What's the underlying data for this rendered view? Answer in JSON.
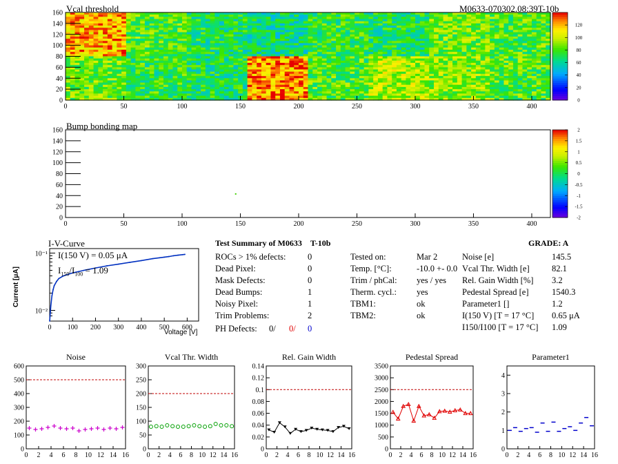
{
  "maps": {
    "vcal": {
      "title": "Vcal threshold",
      "id_label": "M0633-070302.08:39T-10b",
      "x_ticks": [
        0,
        50,
        100,
        150,
        200,
        250,
        300,
        350,
        400
      ],
      "y_ticks": [
        0,
        20,
        40,
        60,
        80,
        100,
        120,
        140,
        160
      ],
      "xlim": [
        0,
        416
      ],
      "ylim": [
        0,
        160
      ],
      "colorbar_ticks": [
        0,
        20,
        40,
        60,
        80,
        100,
        120
      ],
      "colorbar_range": [
        0,
        140
      ],
      "rocs_top": [
        120,
        80,
        70,
        65,
        75,
        70,
        85,
        80
      ],
      "rocs_bottom": [
        85,
        75,
        70,
        125,
        80,
        95,
        90,
        80
      ]
    },
    "bump": {
      "title": "Bump bonding map",
      "x_ticks": [
        0,
        50,
        100,
        150,
        200,
        250,
        300,
        350,
        400
      ],
      "y_ticks": [
        0,
        20,
        40,
        60,
        80,
        100,
        120,
        140,
        160
      ],
      "xlim": [
        0,
        416
      ],
      "ylim": [
        0,
        160
      ],
      "colorbar_ticks": [
        -2,
        -1.5,
        -1,
        -0.5,
        0,
        0.5,
        1,
        1.5,
        2
      ],
      "colorbar_range": [
        -2,
        2
      ],
      "dead_pixels": [
        {
          "x": 146,
          "y": 43
        }
      ]
    }
  },
  "iv": {
    "title": "I-V-Curve",
    "xlabel": "Voltage [V]",
    "ylabel": "Current [μA]",
    "annotation1": "I(150 V) = 0.05 μA",
    "annotation2": "I150/I100 = 1.09",
    "annotation2_parts": {
      "a": "I",
      "b": "150",
      "c": "/I",
      "d": "100",
      "e": " = 1.09"
    },
    "x_ticks": [
      0,
      100,
      200,
      300,
      400,
      500,
      600
    ],
    "y_tick_labels": [
      "10⁻¹",
      "10⁻²"
    ],
    "xlim": [
      0,
      650
    ],
    "ylim_log": [
      0.0065,
      0.12
    ],
    "points": [
      [
        0,
        0.0065
      ],
      [
        5,
        0.012
      ],
      [
        10,
        0.018
      ],
      [
        15,
        0.023
      ],
      [
        20,
        0.027
      ],
      [
        30,
        0.032
      ],
      [
        40,
        0.036
      ],
      [
        60,
        0.04
      ],
      [
        100,
        0.045
      ],
      [
        150,
        0.05
      ],
      [
        200,
        0.055
      ],
      [
        250,
        0.06
      ],
      [
        300,
        0.064
      ],
      [
        350,
        0.069
      ],
      [
        400,
        0.074
      ],
      [
        450,
        0.08
      ],
      [
        480,
        0.083
      ],
      [
        500,
        0.085
      ],
      [
        520,
        0.087
      ],
      [
        540,
        0.09
      ],
      [
        560,
        0.092
      ],
      [
        580,
        0.094
      ],
      [
        590,
        0.095
      ]
    ]
  },
  "summary": {
    "title": "Test Summary of M0633",
    "type": "T-10b",
    "grade": "GRADE:  A",
    "left": [
      {
        "label": "ROCs > 1% defects:",
        "value": "0"
      },
      {
        "label": "Dead Pixel:",
        "value": "0"
      },
      {
        "label": "Mask Defects:",
        "value": "0"
      },
      {
        "label": "Dead Bumps:",
        "value": "1"
      },
      {
        "label": "Noisy Pixel:",
        "value": "1"
      },
      {
        "label": "Trim Problems:",
        "value": "2"
      }
    ],
    "ph_label": "PH Defects:",
    "ph_values": [
      "0/",
      "0/",
      "0"
    ],
    "ph_colors": [
      "#000000",
      "#e00000",
      "#0000cc"
    ],
    "middle": [
      {
        "label": "Tested on:",
        "value": "Mar 2"
      },
      {
        "label": "Temp. [°C]:",
        "value": "-10.0 +- 0.0"
      },
      {
        "label": "Trim / phCal:",
        "value": "yes / yes"
      },
      {
        "label": "Therm. cycl.:",
        "value": "yes"
      },
      {
        "label": "TBM1:",
        "value": "ok"
      },
      {
        "label": "TBM2:",
        "value": "ok"
      }
    ],
    "right": [
      {
        "label": "Noise [e]",
        "value": "145.5"
      },
      {
        "label": "Vcal Thr. Width [e]",
        "value": "82.1"
      },
      {
        "label": "Rel. Gain Width [%]",
        "value": "3.2"
      },
      {
        "label": "Pedestal Spread [e]",
        "value": "1540.3"
      },
      {
        "label": "Parameter1 []",
        "value": "1.2"
      },
      {
        "label": "I(150 V) [T = 17 °C]",
        "value": "0.65 μA"
      },
      {
        "label": "I150/I100  [T = 17 °C]",
        "value": "1.09"
      }
    ]
  },
  "chart_data": [
    {
      "type": "scatter",
      "title": "Noise",
      "xlim": [
        0,
        16
      ],
      "ylim": [
        0,
        600
      ],
      "y_ticks": [
        0,
        100,
        200,
        300,
        400,
        500,
        600
      ],
      "x_ticks": [
        0,
        2,
        4,
        6,
        8,
        10,
        12,
        14,
        16
      ],
      "threshold": 500,
      "color": "#cc00cc",
      "marker": "plus",
      "x": [
        0,
        1,
        2,
        3,
        4,
        5,
        6,
        7,
        8,
        9,
        10,
        11,
        12,
        13,
        14,
        15
      ],
      "values": [
        150,
        140,
        145,
        155,
        165,
        150,
        145,
        150,
        130,
        140,
        145,
        150,
        140,
        150,
        145,
        155
      ]
    },
    {
      "type": "scatter",
      "title": "Vcal Thr. Width",
      "xlim": [
        0,
        16
      ],
      "ylim": [
        0,
        300
      ],
      "y_ticks": [
        0,
        50,
        100,
        150,
        200,
        250,
        300
      ],
      "x_ticks": [
        0,
        2,
        4,
        6,
        8,
        10,
        12,
        14,
        16
      ],
      "threshold": 200,
      "color": "#00a000",
      "marker": "circle",
      "x": [
        0,
        1,
        2,
        3,
        4,
        5,
        6,
        7,
        8,
        9,
        10,
        11,
        12,
        13,
        14,
        15
      ],
      "values": [
        80,
        82,
        80,
        85,
        82,
        80,
        80,
        82,
        85,
        82,
        80,
        82,
        90,
        85,
        85,
        82
      ]
    },
    {
      "type": "line",
      "title": "Rel. Gain Width",
      "xlim": [
        0,
        16
      ],
      "ylim": [
        0,
        0.14
      ],
      "y_ticks": [
        0,
        0.02,
        0.04,
        0.06,
        0.08,
        0.1,
        0.12,
        0.14
      ],
      "x_ticks": [
        0,
        2,
        4,
        6,
        8,
        10,
        12,
        14,
        16
      ],
      "threshold": 0.1,
      "color": "#000000",
      "marker": "triangle-down",
      "x": [
        0,
        1,
        2,
        3,
        4,
        5,
        6,
        7,
        8,
        9,
        10,
        11,
        12,
        13,
        14,
        15
      ],
      "values": [
        0.032,
        0.028,
        0.044,
        0.037,
        0.026,
        0.033,
        0.029,
        0.031,
        0.035,
        0.033,
        0.032,
        0.031,
        0.029,
        0.036,
        0.038,
        0.034
      ]
    },
    {
      "type": "line",
      "title": "Pedestal Spread",
      "xlim": [
        0,
        16
      ],
      "ylim": [
        0,
        3500
      ],
      "y_ticks": [
        0,
        500,
        1000,
        1500,
        2000,
        2500,
        3000,
        3500
      ],
      "x_ticks": [
        0,
        2,
        4,
        6,
        8,
        10,
        12,
        14,
        16
      ],
      "threshold": 2500,
      "color": "#e00000",
      "marker": "triangle",
      "x": [
        0,
        1,
        2,
        3,
        4,
        5,
        6,
        7,
        8,
        9,
        10,
        11,
        12,
        13,
        14,
        15
      ],
      "values": [
        1550,
        1270,
        1800,
        1880,
        1180,
        1800,
        1400,
        1450,
        1300,
        1580,
        1600,
        1560,
        1620,
        1650,
        1500,
        1500
      ]
    },
    {
      "type": "scatter",
      "title": "Parameter1",
      "xlim": [
        0,
        16
      ],
      "ylim": [
        0,
        4.5
      ],
      "y_ticks": [
        0,
        1,
        2,
        3,
        4
      ],
      "x_ticks": [
        0,
        2,
        4,
        6,
        8,
        10,
        12,
        14,
        16
      ],
      "color": "#0000cc",
      "marker": "dash",
      "x": [
        0,
        1,
        2,
        3,
        4,
        5,
        6,
        7,
        8,
        9,
        10,
        11,
        12,
        13,
        14,
        15
      ],
      "values": [
        1.0,
        1.15,
        0.95,
        1.1,
        1.15,
        0.9,
        1.4,
        0.95,
        1.45,
        0.95,
        1.1,
        1.2,
        1.0,
        1.4,
        1.7,
        1.25
      ]
    }
  ]
}
